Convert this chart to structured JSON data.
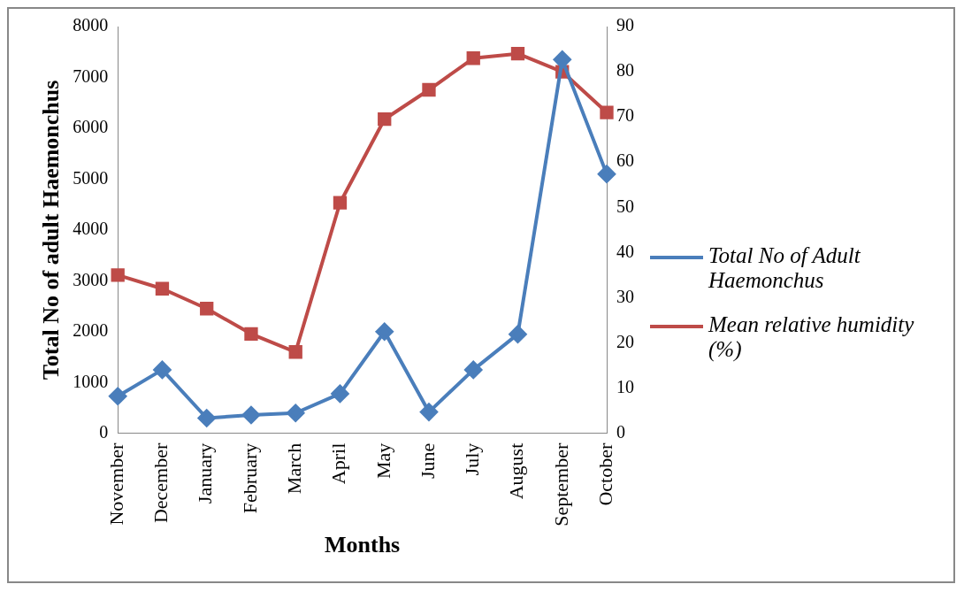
{
  "chart_data": {
    "type": "line",
    "xlabel": "Months",
    "ylabel": "Total No of adult Haemonchus",
    "categories": [
      "November",
      "December",
      "January",
      "February",
      "March",
      "April",
      "May",
      "June",
      "July",
      "August",
      "September",
      "October"
    ],
    "series": [
      {
        "name": "Total No of Adult Haemonchus",
        "color": "#4a7ebb",
        "marker": "diamond",
        "values": [
          730,
          1250,
          300,
          360,
          400,
          780,
          2000,
          420,
          1250,
          1950,
          7350,
          5100
        ]
      },
      {
        "name": "Mean relative humidity (%)",
        "color": "#be4b48",
        "marker": "square",
        "axis": "y2",
        "values": [
          35,
          32,
          27.6,
          22,
          18,
          51,
          69.5,
          76,
          83,
          84,
          80,
          71
        ]
      }
    ],
    "ylim": [
      0,
      8000
    ],
    "yticks": [
      0,
      1000,
      2000,
      3000,
      4000,
      5000,
      6000,
      7000,
      8000
    ],
    "y2lim": [
      0,
      90
    ],
    "y2ticks": [
      0,
      10,
      20,
      30,
      40,
      50,
      60,
      70,
      80,
      90
    ],
    "grid": false,
    "legend": "right"
  }
}
